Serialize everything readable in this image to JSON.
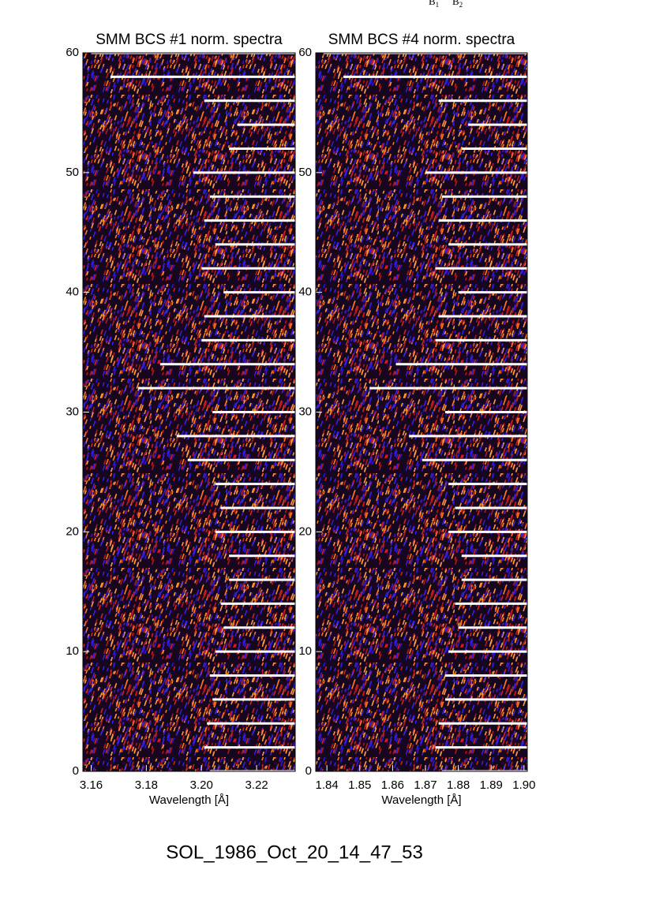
{
  "header": {
    "labels": [
      {
        "base": "B",
        "sub": "1"
      },
      {
        "base": "B",
        "sub": "2"
      }
    ]
  },
  "chart_data": [
    {
      "type": "spectrogram",
      "title": "SMM BCS #1 norm. spectra",
      "xlabel": "Wavelength [Å]",
      "xlim": [
        3.157,
        3.234
      ],
      "ylim": [
        0,
        60
      ],
      "xticks": [
        3.16,
        3.18,
        {
          "value": 3.2,
          "label": "3.20"
        },
        3.22
      ],
      "yticks": [
        0,
        10,
        20,
        30,
        40,
        50,
        60
      ],
      "series": [
        {
          "color": "#ffffff",
          "y": [
            0,
            2,
            4,
            6,
            8,
            10,
            12,
            14,
            16,
            18,
            20,
            22,
            24,
            26,
            28,
            30,
            32,
            34,
            36,
            38,
            40,
            42,
            44,
            46,
            48,
            50,
            52,
            54,
            56,
            58,
            60
          ],
          "x": [
            3.203,
            3.201,
            3.202,
            3.204,
            3.203,
            3.205,
            3.208,
            3.207,
            3.21,
            3.21,
            3.205,
            3.207,
            3.205,
            3.195,
            3.191,
            3.204,
            3.177,
            3.185,
            3.2,
            3.201,
            3.208,
            3.2,
            3.205,
            3.201,
            3.203,
            3.197,
            3.21,
            3.213,
            3.201,
            3.167,
            3.16
          ]
        }
      ]
    },
    {
      "type": "spectrogram",
      "title": "SMM BCS #4 norm. spectra",
      "xlabel": "Wavelength [Å]",
      "xlim": [
        1.8366,
        1.901
      ],
      "ylim": [
        0,
        60
      ],
      "xticks": [
        1.84,
        1.85,
        1.86,
        1.87,
        1.88,
        1.89,
        {
          "value": 1.9,
          "label": "1.90"
        }
      ],
      "yticks": [
        0,
        10,
        20,
        30,
        40,
        50,
        60
      ],
      "series": [
        {
          "color": "#ffffff",
          "y": [
            0,
            2,
            4,
            6,
            8,
            10,
            12,
            14,
            16,
            18,
            20,
            22,
            24,
            26,
            28,
            30,
            32,
            34,
            36,
            38,
            40,
            42,
            44,
            46,
            48,
            50,
            52,
            54,
            56,
            58,
            60
          ],
          "x": [
            1.875,
            1.873,
            1.874,
            1.876,
            1.876,
            1.877,
            1.88,
            1.879,
            1.881,
            1.881,
            1.877,
            1.879,
            1.877,
            1.869,
            1.865,
            1.876,
            1.853,
            1.861,
            1.873,
            1.874,
            1.88,
            1.873,
            1.877,
            1.874,
            1.875,
            1.87,
            1.881,
            1.883,
            1.874,
            1.845,
            1.839
          ]
        }
      ]
    }
  ],
  "footer": {
    "text": "SOL_1986_Oct_20_14_47_53"
  }
}
